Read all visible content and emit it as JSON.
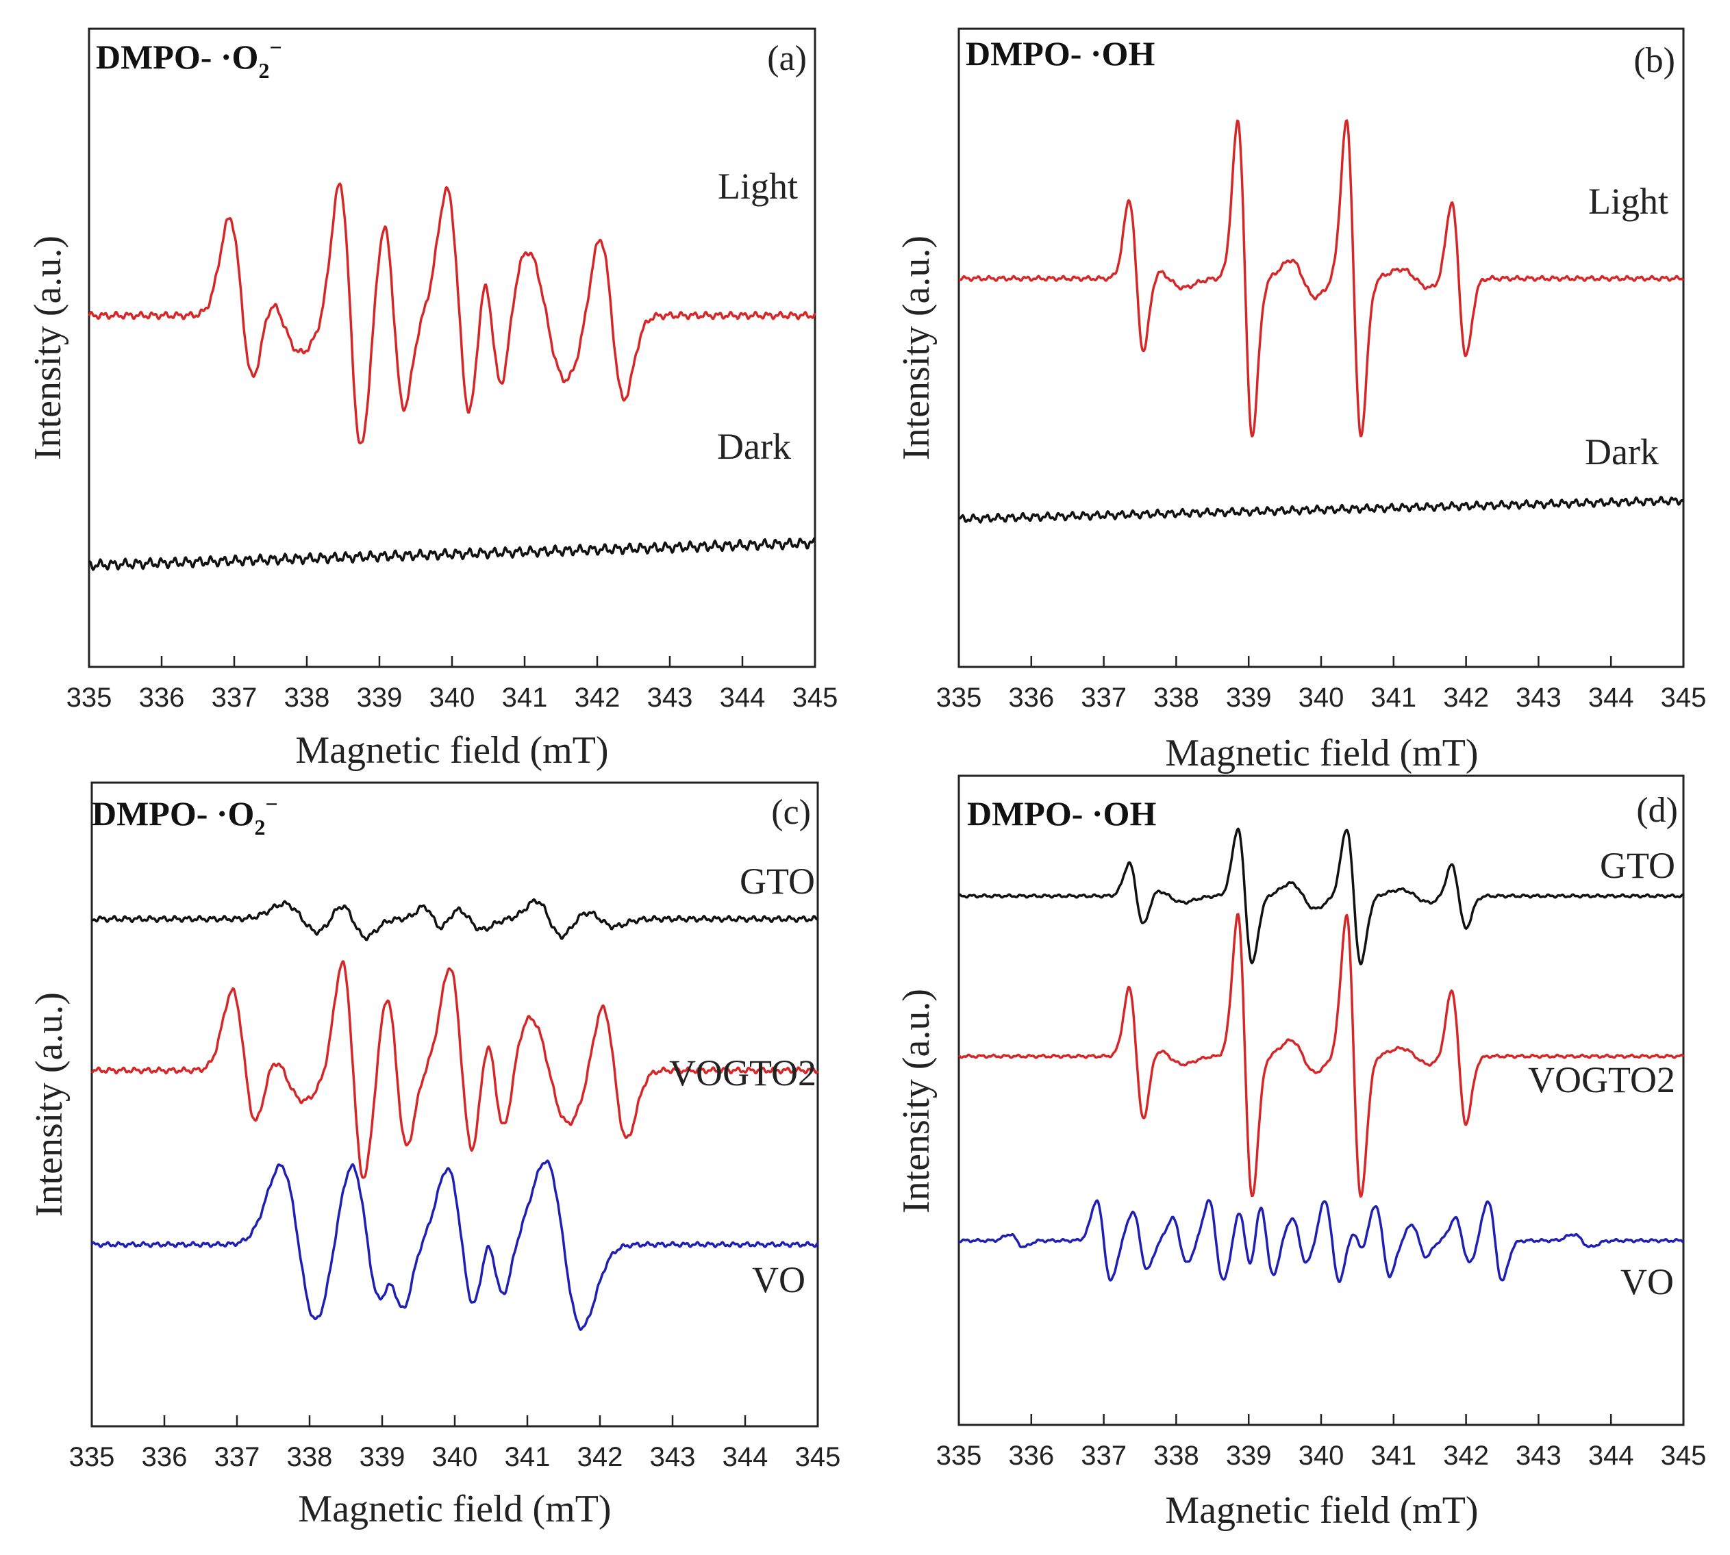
{
  "figure": {
    "panels": [
      {
        "id": "a",
        "panel_label": "(a)",
        "species_prefix": "DMPO- ·O",
        "species_sub": "2",
        "species_sup": "−",
        "xlabel": "Magnetic field (mT)",
        "ylabel": "Intensity (a.u.)"
      },
      {
        "id": "b",
        "panel_label": "(b)",
        "species_prefix": "DMPO- ·OH",
        "species_sub": "",
        "species_sup": "",
        "xlabel": "Magnetic field (mT)",
        "ylabel": "Intensity (a.u.)"
      },
      {
        "id": "c",
        "panel_label": "(c)",
        "species_prefix": "DMPO- ·O",
        "species_sub": "2",
        "species_sup": "−",
        "xlabel": "Magnetic field (mT)",
        "ylabel": "Intensity (a.u.)"
      },
      {
        "id": "d",
        "panel_label": "(d)",
        "species_prefix": "DMPO- ·OH",
        "species_sub": "",
        "species_sup": "",
        "xlabel": "Magnetic field (mT)",
        "ylabel": "Intensity (a.u.)"
      }
    ]
  },
  "chart_data": [
    {
      "panel": "a",
      "type": "line",
      "title": "DMPO- ·O2−",
      "xlabel": "Magnetic field (mT)",
      "ylabel": "Intensity (a.u.)",
      "xlim": [
        335,
        345
      ],
      "xticks": [
        335,
        336,
        337,
        338,
        339,
        340,
        341,
        342,
        343,
        344,
        345
      ],
      "ylim": [
        -1.9,
        1.55
      ],
      "yticks_shown": false,
      "series": [
        {
          "name": "Light",
          "color": "#d62728",
          "offset": 0.0,
          "noise": 0.012,
          "drift": 0.0,
          "peaks": [
            {
              "x": 337.1,
              "a": 0.5,
              "w": 0.17
            },
            {
              "x": 337.65,
              "a": 0.2,
              "w": 0.27
            },
            {
              "x": 338.6,
              "a": 0.72,
              "w": 0.15
            },
            {
              "x": 339.2,
              "a": 0.5,
              "w": 0.14
            },
            {
              "x": 340.1,
              "a": 0.68,
              "w": 0.17
            },
            {
              "x": 340.55,
              "a": 0.45,
              "w": 0.14
            },
            {
              "x": 341.3,
              "a": 0.35,
              "w": 0.27
            },
            {
              "x": 342.2,
              "a": 0.45,
              "w": 0.17
            }
          ]
        },
        {
          "name": "Dark",
          "color": "#111111",
          "offset": -1.35,
          "noise": 0.018,
          "drift": 0.12,
          "peaks": []
        }
      ]
    },
    {
      "panel": "b",
      "type": "line",
      "title": "DMPO- ·OH",
      "xlabel": "Magnetic field (mT)",
      "ylabel": "Intensity (a.u.)",
      "xlim": [
        335,
        345
      ],
      "xticks": [
        335,
        336,
        337,
        338,
        339,
        340,
        341,
        342,
        343,
        344,
        345
      ],
      "ylim": [
        -2.1,
        1.35
      ],
      "yticks_shown": false,
      "series": [
        {
          "name": "Light",
          "color": "#d62728",
          "offset": 0.0,
          "noise": 0.008,
          "drift": 0.0,
          "peaks": [
            {
              "x": 337.45,
              "a": 0.42,
              "w": 0.1
            },
            {
              "x": 337.9,
              "a": 0.05,
              "w": 0.2
            },
            {
              "x": 338.95,
              "a": 0.85,
              "w": 0.1
            },
            {
              "x": 339.75,
              "a": 0.1,
              "w": 0.17
            },
            {
              "x": 340.45,
              "a": 0.85,
              "w": 0.1
            },
            {
              "x": 341.3,
              "a": 0.05,
              "w": 0.2
            },
            {
              "x": 341.9,
              "a": 0.42,
              "w": 0.1
            }
          ]
        },
        {
          "name": "Dark",
          "color": "#111111",
          "offset": -1.3,
          "noise": 0.014,
          "drift": 0.1,
          "peaks": []
        }
      ]
    },
    {
      "panel": "c",
      "type": "line",
      "title": "DMPO- ·O2−",
      "xlabel": "Magnetic field (mT)",
      "ylabel": "Intensity (a.u.)",
      "xlim": [
        335,
        345
      ],
      "xticks": [
        335,
        336,
        337,
        338,
        339,
        340,
        341,
        342,
        343,
        344,
        345
      ],
      "ylim": [
        -2.35,
        1.9
      ],
      "yticks_shown": false,
      "series": [
        {
          "name": "GTO",
          "color": "#111111",
          "offset": 1.0,
          "noise": 0.012,
          "drift": 0.0,
          "peaks": [
            {
              "x": 337.9,
              "a": 0.1,
              "w": 0.25
            },
            {
              "x": 338.6,
              "a": 0.12,
              "w": 0.18
            },
            {
              "x": 339.7,
              "a": 0.08,
              "w": 0.13
            },
            {
              "x": 340.2,
              "a": 0.07,
              "w": 0.18
            },
            {
              "x": 341.3,
              "a": 0.12,
              "w": 0.18
            },
            {
              "x": 342.0,
              "a": 0.05,
              "w": 0.2
            }
          ]
        },
        {
          "name": "VOGTO2",
          "color": "#d62728",
          "offset": 0.0,
          "noise": 0.012,
          "drift": 0.0,
          "peaks": [
            {
              "x": 337.1,
              "a": 0.5,
              "w": 0.17
            },
            {
              "x": 337.65,
              "a": 0.2,
              "w": 0.27
            },
            {
              "x": 338.6,
              "a": 0.72,
              "w": 0.15
            },
            {
              "x": 339.2,
              "a": 0.5,
              "w": 0.14
            },
            {
              "x": 340.1,
              "a": 0.68,
              "w": 0.17
            },
            {
              "x": 340.55,
              "a": 0.45,
              "w": 0.14
            },
            {
              "x": 341.3,
              "a": 0.35,
              "w": 0.27
            },
            {
              "x": 342.2,
              "a": 0.45,
              "w": 0.17
            }
          ]
        },
        {
          "name": "VO",
          "color": "#1f1fb4",
          "offset": -1.15,
          "noise": 0.01,
          "drift": 0.0,
          "peaks": [
            {
              "x": 337.85,
              "a": 0.52,
              "w": 0.25
            },
            {
              "x": 338.8,
              "a": 0.55,
              "w": 0.23
            },
            {
              "x": 339.2,
              "a": 0.25,
              "w": 0.13
            },
            {
              "x": 340.1,
              "a": 0.5,
              "w": 0.2
            },
            {
              "x": 340.55,
              "a": 0.3,
              "w": 0.13
            },
            {
              "x": 341.5,
              "a": 0.55,
              "w": 0.25
            }
          ]
        }
      ]
    },
    {
      "panel": "d",
      "type": "line",
      "title": "DMPO- ·OH",
      "xlabel": "Magnetic field (mT)",
      "ylabel": "Intensity (a.u.)",
      "xlim": [
        335,
        345
      ],
      "xticks": [
        335,
        336,
        337,
        338,
        339,
        340,
        341,
        342,
        343,
        344,
        345
      ],
      "ylim": [
        -2.3,
        1.75
      ],
      "yticks_shown": false,
      "series": [
        {
          "name": "GTO",
          "color": "#111111",
          "offset": 1.0,
          "noise": 0.006,
          "drift": 0.0,
          "peaks": [
            {
              "x": 337.45,
              "a": 0.2,
              "w": 0.1
            },
            {
              "x": 337.9,
              "a": 0.04,
              "w": 0.2
            },
            {
              "x": 338.95,
              "a": 0.42,
              "w": 0.1
            },
            {
              "x": 339.75,
              "a": 0.08,
              "w": 0.17
            },
            {
              "x": 340.45,
              "a": 0.42,
              "w": 0.1
            },
            {
              "x": 341.3,
              "a": 0.04,
              "w": 0.2
            },
            {
              "x": 341.9,
              "a": 0.2,
              "w": 0.1
            }
          ]
        },
        {
          "name": "VOGTO2",
          "color": "#d62728",
          "offset": 0.0,
          "noise": 0.006,
          "drift": 0.0,
          "peaks": [
            {
              "x": 337.45,
              "a": 0.42,
              "w": 0.1
            },
            {
              "x": 337.9,
              "a": 0.05,
              "w": 0.2
            },
            {
              "x": 338.95,
              "a": 0.88,
              "w": 0.1
            },
            {
              "x": 339.75,
              "a": 0.1,
              "w": 0.17
            },
            {
              "x": 340.45,
              "a": 0.88,
              "w": 0.1
            },
            {
              "x": 341.3,
              "a": 0.05,
              "w": 0.2
            },
            {
              "x": 341.9,
              "a": 0.42,
              "w": 0.1
            }
          ]
        },
        {
          "name": "VO",
          "color": "#1f1fb4",
          "offset": -1.15,
          "noise": 0.006,
          "drift": 0.0,
          "peaks": [
            {
              "x": 335.8,
              "a": 0.04,
              "w": 0.1
            },
            {
              "x": 337.0,
              "a": 0.25,
              "w": 0.1
            },
            {
              "x": 337.5,
              "a": 0.18,
              "w": 0.1
            },
            {
              "x": 338.05,
              "a": 0.14,
              "w": 0.1
            },
            {
              "x": 338.55,
              "a": 0.25,
              "w": 0.1
            },
            {
              "x": 338.95,
              "a": 0.18,
              "w": 0.08
            },
            {
              "x": 339.25,
              "a": 0.22,
              "w": 0.09
            },
            {
              "x": 339.7,
              "a": 0.14,
              "w": 0.1
            },
            {
              "x": 340.15,
              "a": 0.25,
              "w": 0.1
            },
            {
              "x": 340.5,
              "a": 0.06,
              "w": 0.07
            },
            {
              "x": 340.85,
              "a": 0.22,
              "w": 0.1
            },
            {
              "x": 341.35,
              "a": 0.1,
              "w": 0.1
            },
            {
              "x": 341.95,
              "a": 0.14,
              "w": 0.1
            },
            {
              "x": 342.4,
              "a": 0.25,
              "w": 0.1
            },
            {
              "x": 343.6,
              "a": 0.04,
              "w": 0.12
            }
          ]
        }
      ]
    }
  ]
}
